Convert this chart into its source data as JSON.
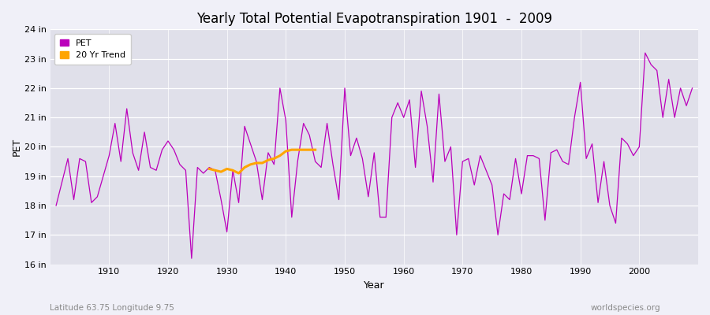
{
  "title": "Yearly Total Potential Evapotranspiration 1901  -  2009",
  "xlabel": "Year",
  "ylabel": "PET",
  "subtitle_left": "Latitude 63.75 Longitude 9.75",
  "subtitle_right": "worldspecies.org",
  "fig_bg_color": "#f0f0f8",
  "plot_bg_color": "#e0e0ea",
  "pet_color": "#bb00bb",
  "trend_color": "#ffa500",
  "ylim": [
    16,
    24
  ],
  "yticks": [
    16,
    17,
    18,
    19,
    20,
    21,
    22,
    23,
    24
  ],
  "ytick_labels": [
    "16 in",
    "17 in",
    "18 in",
    "19 in",
    "20 in",
    "21 in",
    "22 in",
    "23 in",
    "24 in"
  ],
  "years": [
    1901,
    1902,
    1903,
    1904,
    1905,
    1906,
    1907,
    1908,
    1909,
    1910,
    1911,
    1912,
    1913,
    1914,
    1915,
    1916,
    1917,
    1918,
    1919,
    1920,
    1921,
    1922,
    1923,
    1924,
    1925,
    1926,
    1927,
    1928,
    1929,
    1930,
    1931,
    1932,
    1933,
    1934,
    1935,
    1936,
    1937,
    1938,
    1939,
    1940,
    1941,
    1942,
    1943,
    1944,
    1945,
    1946,
    1947,
    1948,
    1949,
    1950,
    1951,
    1952,
    1953,
    1954,
    1955,
    1956,
    1957,
    1958,
    1959,
    1960,
    1961,
    1962,
    1963,
    1964,
    1965,
    1966,
    1967,
    1968,
    1969,
    1970,
    1971,
    1972,
    1973,
    1974,
    1975,
    1976,
    1977,
    1978,
    1979,
    1980,
    1981,
    1982,
    1983,
    1984,
    1985,
    1986,
    1987,
    1988,
    1989,
    1990,
    1991,
    1992,
    1993,
    1994,
    1995,
    1996,
    1997,
    1998,
    1999,
    2000,
    2001,
    2002,
    2003,
    2004,
    2005,
    2006,
    2007,
    2008,
    2009
  ],
  "pet_values": [
    18.0,
    18.8,
    19.6,
    18.2,
    19.6,
    19.5,
    18.1,
    18.3,
    19.0,
    19.7,
    20.8,
    19.5,
    21.3,
    19.8,
    19.2,
    20.5,
    19.3,
    19.2,
    19.9,
    20.2,
    19.9,
    19.4,
    19.2,
    16.2,
    19.3,
    19.1,
    19.3,
    19.2,
    18.2,
    17.1,
    19.2,
    18.1,
    20.7,
    20.1,
    19.5,
    18.2,
    19.8,
    19.4,
    22.0,
    20.9,
    17.6,
    19.5,
    20.8,
    20.4,
    19.5,
    19.3,
    20.8,
    19.4,
    18.2,
    22.0,
    19.7,
    20.3,
    19.6,
    18.3,
    19.8,
    17.6,
    17.6,
    21.0,
    21.5,
    21.0,
    21.6,
    19.3,
    21.9,
    20.7,
    18.8,
    21.8,
    19.5,
    20.0,
    17.0,
    19.5,
    19.6,
    18.7,
    19.7,
    19.2,
    18.7,
    17.0,
    18.4,
    18.2,
    19.6,
    18.4,
    19.7,
    19.7,
    19.6,
    17.5,
    19.8,
    19.9,
    19.5,
    19.4,
    21.0,
    22.2,
    19.6,
    20.1,
    18.1,
    19.5,
    18.0,
    17.4,
    20.3,
    20.1,
    19.7,
    20.0,
    23.2,
    22.8,
    22.6,
    21.0,
    22.3,
    21.0,
    22.0,
    21.4,
    22.0
  ],
  "trend_years": [
    1927,
    1928,
    1929,
    1930,
    1931,
    1932,
    1933,
    1934,
    1935,
    1936,
    1937,
    1938,
    1939,
    1940,
    1941,
    1942,
    1943,
    1944,
    1945
  ],
  "trend_values": [
    19.25,
    19.2,
    19.15,
    19.25,
    19.2,
    19.1,
    19.3,
    19.4,
    19.45,
    19.45,
    19.55,
    19.6,
    19.7,
    19.85,
    19.9,
    19.9,
    19.9,
    19.9,
    19.9
  ],
  "xticks": [
    1910,
    1920,
    1930,
    1940,
    1950,
    1960,
    1970,
    1980,
    1990,
    2000
  ],
  "xlim": [
    1900,
    2010
  ]
}
